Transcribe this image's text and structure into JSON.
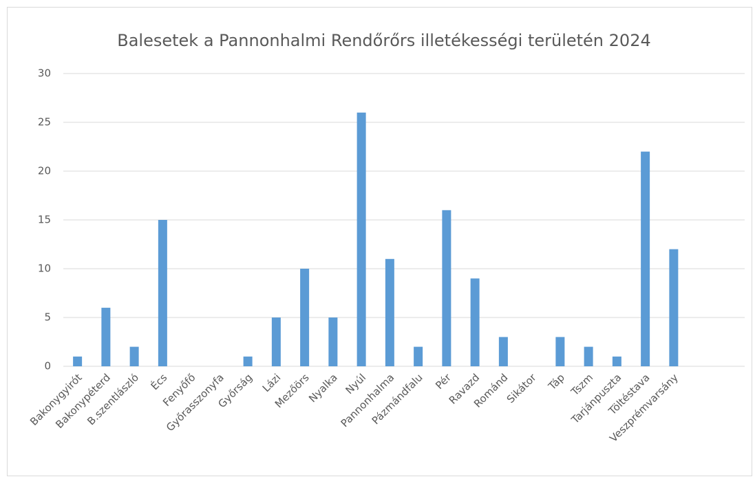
{
  "chart_data": {
    "type": "bar",
    "title": "Balesetek a Pannonhalmi Rendőrőrs illetékességi területén 2024",
    "categories": [
      "Bakonygyirót",
      "Bakonypéterd",
      "B.szentlászló",
      "Écs",
      "Fenyőfő",
      "Győrasszonyfa",
      "Győrság",
      "Lázi",
      "Mezőörs",
      "Nyalka",
      "Nyúl",
      "Pannonhalma",
      "Pázmándfalu",
      "Pér",
      "Ravazd",
      "Románd",
      "Sikátor",
      "Táp",
      "Tszm",
      "Tarjánpuszta",
      "Töltéstava",
      "Veszprémvarsány",
      null,
      null
    ],
    "values": [
      1,
      6,
      2,
      15,
      0,
      0,
      1,
      5,
      10,
      5,
      26,
      11,
      2,
      16,
      9,
      3,
      0,
      3,
      2,
      1,
      22,
      12,
      null,
      null
    ],
    "color": "#5b9bd5",
    "ylim": [
      0,
      30
    ],
    "yticks": [
      0,
      5,
      10,
      15,
      20,
      25,
      30
    ],
    "grid": true
  }
}
